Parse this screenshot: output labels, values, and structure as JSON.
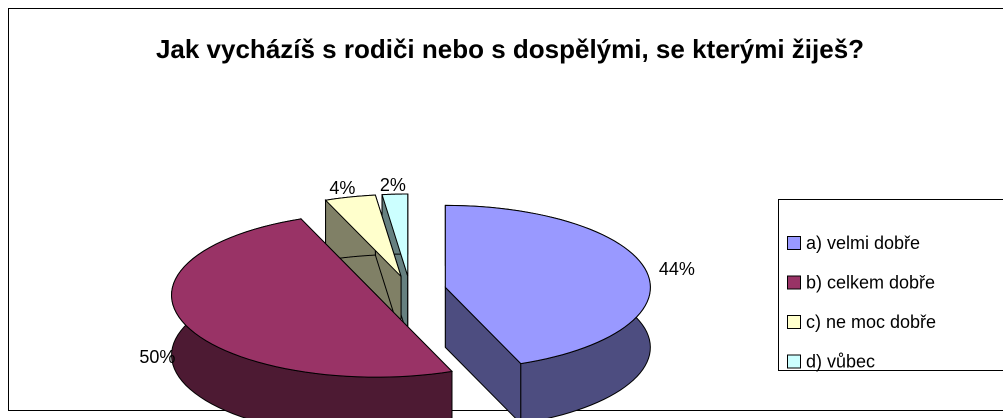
{
  "chart_data": {
    "type": "pie",
    "title": "Jak vycházíš s rodiči nebo s dospělými, se kterými žiješ?",
    "categories": [
      "a) velmi dobře",
      "b) celkem dobře",
      "c) ne moc dobře",
      "d) vůbec"
    ],
    "values": [
      44,
      50,
      4,
      2
    ],
    "value_labels": [
      "44%",
      "50%",
      "4%",
      "2%"
    ],
    "colors": [
      "#9999ff",
      "#993366",
      "#ffffcc",
      "#ccffff"
    ],
    "legend": "right"
  }
}
